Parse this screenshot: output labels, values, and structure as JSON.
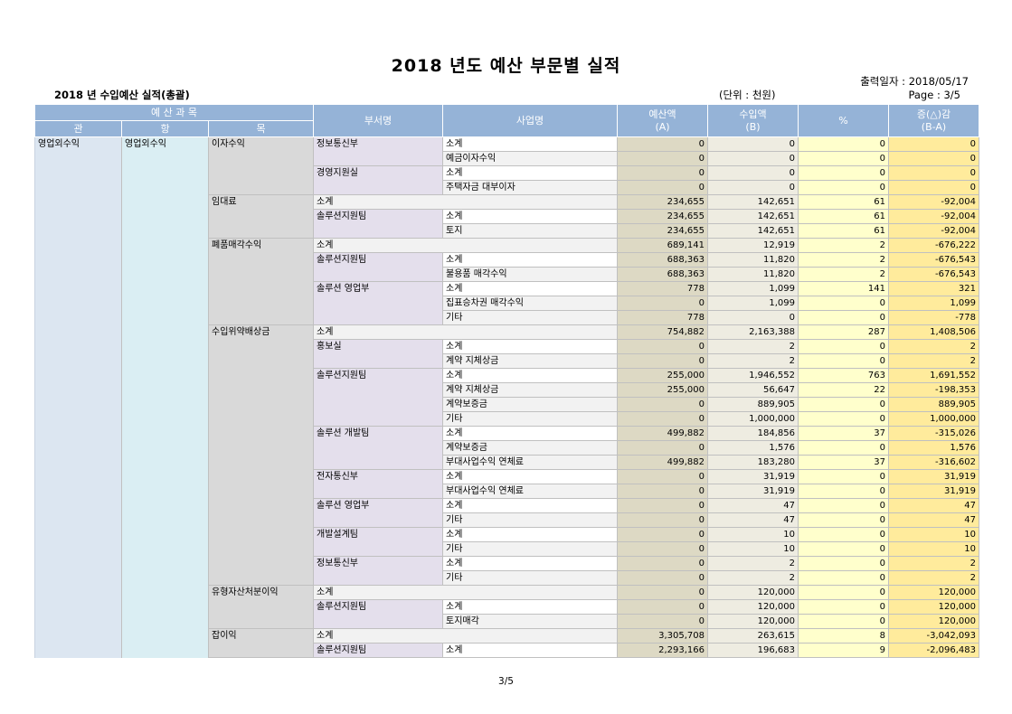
{
  "header": {
    "title": "2018 년도 예산 부문별 실적",
    "output_date": "출력일자 : 2018/05/17",
    "page": "Page : 3/5",
    "subtitle": "2018 년 수입예산 실적(총괄)",
    "unit": "(단위 : 천원)"
  },
  "columns": {
    "budget_item": "예 산 과 목",
    "gwan": "관",
    "hang": "항",
    "mok": "목",
    "dept": "부서명",
    "project": "사업명",
    "budget_line1": "예산액",
    "budget_line2": "(A)",
    "income_line1": "수입액",
    "income_line2": "(B)",
    "percent": "%",
    "diff_line1": "증(△)감",
    "diff_line2": "(B-A)"
  },
  "gwan": "영업외수익",
  "hang": "영업외수익",
  "groups": [
    {
      "mok": "이자수익",
      "rows": [
        {
          "dept": "정보통신부",
          "project": "소계",
          "a": "0",
          "b": "0",
          "p": "0",
          "d": "0"
        },
        {
          "project": "예금이자수익",
          "a": "0",
          "b": "0",
          "p": "0",
          "d": "0"
        },
        {
          "dept": "경영지원실",
          "project": "소계",
          "a": "0",
          "b": "0",
          "p": "0",
          "d": "0"
        },
        {
          "project": "주택자금 대부이자",
          "a": "0",
          "b": "0",
          "p": "0",
          "d": "0"
        }
      ]
    },
    {
      "mok": "임대료",
      "rows": [
        {
          "subtotal": "소계",
          "a": "234,655",
          "b": "142,651",
          "p": "61",
          "d": "-92,004"
        },
        {
          "dept": "솔루션지원팀",
          "project": "소계",
          "a": "234,655",
          "b": "142,651",
          "p": "61",
          "d": "-92,004"
        },
        {
          "project": "토지",
          "a": "234,655",
          "b": "142,651",
          "p": "61",
          "d": "-92,004"
        }
      ]
    },
    {
      "mok": "폐품매각수익",
      "rows": [
        {
          "subtotal": "소계",
          "a": "689,141",
          "b": "12,919",
          "p": "2",
          "d": "-676,222"
        },
        {
          "dept": "솔루션지원팀",
          "project": "소계",
          "a": "688,363",
          "b": "11,820",
          "p": "2",
          "d": "-676,543"
        },
        {
          "project": "불용품 매각수익",
          "a": "688,363",
          "b": "11,820",
          "p": "2",
          "d": "-676,543"
        },
        {
          "dept": "솔루션 영업부",
          "project": "소계",
          "a": "778",
          "b": "1,099",
          "p": "141",
          "d": "321"
        },
        {
          "project": "집표승차권 매각수익",
          "a": "0",
          "b": "1,099",
          "p": "0",
          "d": "1,099"
        },
        {
          "project": "기타",
          "a": "778",
          "b": "0",
          "p": "0",
          "d": "-778"
        }
      ]
    },
    {
      "mok": "수입위약배상금",
      "rows": [
        {
          "subtotal": "소계",
          "a": "754,882",
          "b": "2,163,388",
          "p": "287",
          "d": "1,408,506"
        },
        {
          "dept": "홍보실",
          "project": "소계",
          "a": "0",
          "b": "2",
          "p": "0",
          "d": "2"
        },
        {
          "project": "계약 지체상금",
          "a": "0",
          "b": "2",
          "p": "0",
          "d": "2"
        },
        {
          "dept": "솔루션지원팀",
          "project": "소계",
          "a": "255,000",
          "b": "1,946,552",
          "p": "763",
          "d": "1,691,552"
        },
        {
          "project": "계약 지체상금",
          "a": "255,000",
          "b": "56,647",
          "p": "22",
          "d": "-198,353"
        },
        {
          "project": "계약보증금",
          "a": "0",
          "b": "889,905",
          "p": "0",
          "d": "889,905"
        },
        {
          "project": "기타",
          "a": "0",
          "b": "1,000,000",
          "p": "0",
          "d": "1,000,000"
        },
        {
          "dept": "솔루션 개발팀",
          "project": "소계",
          "a": "499,882",
          "b": "184,856",
          "p": "37",
          "d": "-315,026"
        },
        {
          "project": "계약보증금",
          "a": "0",
          "b": "1,576",
          "p": "0",
          "d": "1,576"
        },
        {
          "project": "부대사업수익 연체료",
          "a": "499,882",
          "b": "183,280",
          "p": "37",
          "d": "-316,602"
        },
        {
          "dept": "전자통신부",
          "project": "소계",
          "a": "0",
          "b": "31,919",
          "p": "0",
          "d": "31,919"
        },
        {
          "project": "부대사업수익 연체료",
          "a": "0",
          "b": "31,919",
          "p": "0",
          "d": "31,919"
        },
        {
          "dept": "솔루션 영업부",
          "project": "소계",
          "a": "0",
          "b": "47",
          "p": "0",
          "d": "47"
        },
        {
          "project": "기타",
          "a": "0",
          "b": "47",
          "p": "0",
          "d": "47"
        },
        {
          "dept": "개발설계팀",
          "project": "소계",
          "a": "0",
          "b": "10",
          "p": "0",
          "d": "10"
        },
        {
          "project": "기타",
          "a": "0",
          "b": "10",
          "p": "0",
          "d": "10"
        },
        {
          "dept": "정보통신부",
          "project": "소계",
          "a": "0",
          "b": "2",
          "p": "0",
          "d": "2"
        },
        {
          "project": "기타",
          "a": "0",
          "b": "2",
          "p": "0",
          "d": "2"
        }
      ]
    },
    {
      "mok": "유형자산처분이익",
      "rows": [
        {
          "subtotal": "소계",
          "a": "0",
          "b": "120,000",
          "p": "0",
          "d": "120,000"
        },
        {
          "dept": "솔루션지원팀",
          "project": "소계",
          "a": "0",
          "b": "120,000",
          "p": "0",
          "d": "120,000"
        },
        {
          "project": "토지매각",
          "a": "0",
          "b": "120,000",
          "p": "0",
          "d": "120,000"
        }
      ]
    },
    {
      "mok": "잡이익",
      "rows": [
        {
          "subtotal": "소계",
          "a": "3,305,708",
          "b": "263,615",
          "p": "8",
          "d": "-3,042,093"
        },
        {
          "dept": "솔루션지원팀",
          "project": "소계",
          "a": "2,293,166",
          "b": "196,683",
          "p": "9",
          "d": "-2,096,483"
        }
      ]
    }
  ],
  "footer": {
    "page": "3/5"
  }
}
